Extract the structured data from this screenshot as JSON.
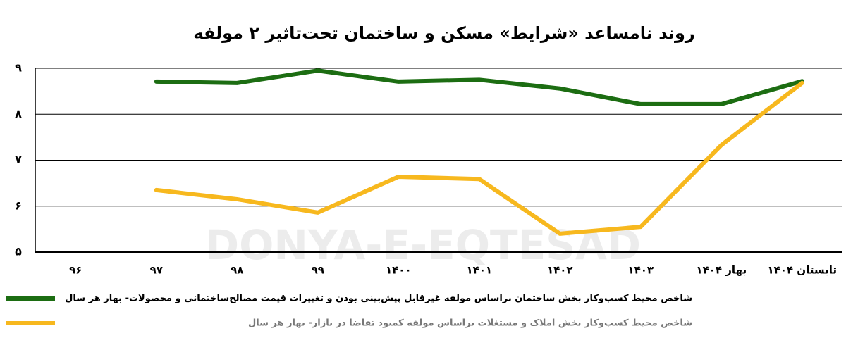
{
  "chart_data": {
    "type": "line",
    "title": "روند نامساعد «شرایط» مسکن و ساختمان تحت‌تاثیر ۲ مولفه",
    "watermark": "DONYA-E-EQTESAD",
    "categories": [
      "۹۶",
      "۹۷",
      "۹۸",
      "۹۹",
      "۱۴۰۰",
      "۱۴۰۱",
      "۱۴۰۲",
      "۱۴۰۳",
      "بهار ۱۴۰۴",
      "تابستان ۱۴۰۴"
    ],
    "series": [
      {
        "name": "شاخص محیط کسب‌وکار بخش ساختمان براساس مولفه غیرقابل پیش‌بینی بودن و تغییرات قیمت مصالح‌ساختمانی و محصولات- بهار هر سال",
        "color": "#1c6d12",
        "values": [
          null,
          8.71,
          8.68,
          8.95,
          8.71,
          8.75,
          8.56,
          8.22,
          8.22,
          8.72
        ]
      },
      {
        "name": "شاخص محیط کسب‌وکار بخش املاک و مستغلات براساس مولفه کمبود تقاضا در بازار- بهار هر سال",
        "color": "#f7b81e",
        "values": [
          null,
          6.35,
          6.15,
          5.86,
          6.64,
          6.59,
          5.4,
          5.55,
          7.33,
          8.68
        ]
      }
    ],
    "ylim": [
      5,
      9
    ],
    "yticks": [
      {
        "value": 5,
        "label": "۵"
      },
      {
        "value": 6,
        "label": "۶"
      },
      {
        "value": 7,
        "label": "۷"
      },
      {
        "value": 8,
        "label": "۸"
      },
      {
        "value": 9,
        "label": "۹"
      }
    ],
    "grid": true
  }
}
